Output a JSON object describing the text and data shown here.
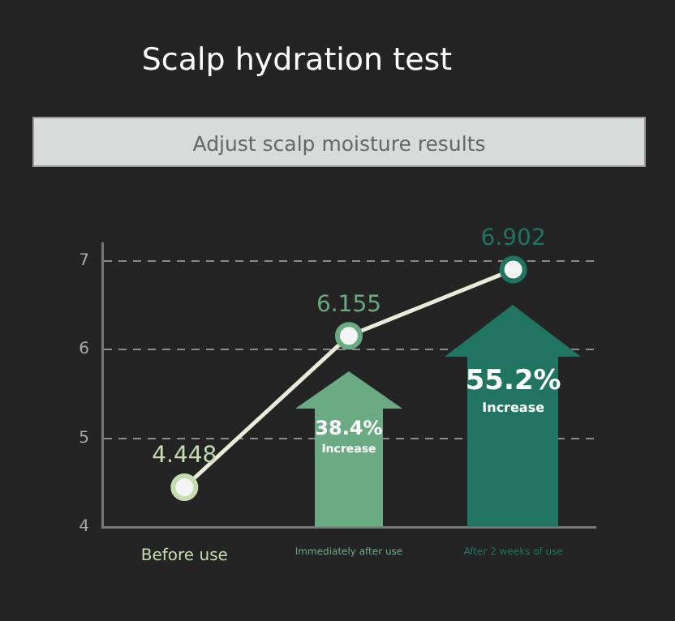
{
  "chart_data": {
    "type": "line",
    "title": "Scalp hydration test",
    "subtitle": "Adjust scalp moisture results",
    "categories": [
      "Before use",
      "Immediately after use",
      "After 2 weeks of use"
    ],
    "values": [
      4.448,
      6.155,
      6.902
    ],
    "color": "#e9ecd9",
    "colors": [
      "#c5dbb0",
      "#6aab83",
      "#207560"
    ],
    "ylim": [
      4,
      7.2
    ],
    "yticks": [
      4,
      5,
      6,
      7
    ],
    "grid": "y",
    "marker": "circle",
    "data_labels": true,
    "annotations": [
      "38.4%",
      "Increase",
      "55.2%",
      "Increase"
    ]
  }
}
